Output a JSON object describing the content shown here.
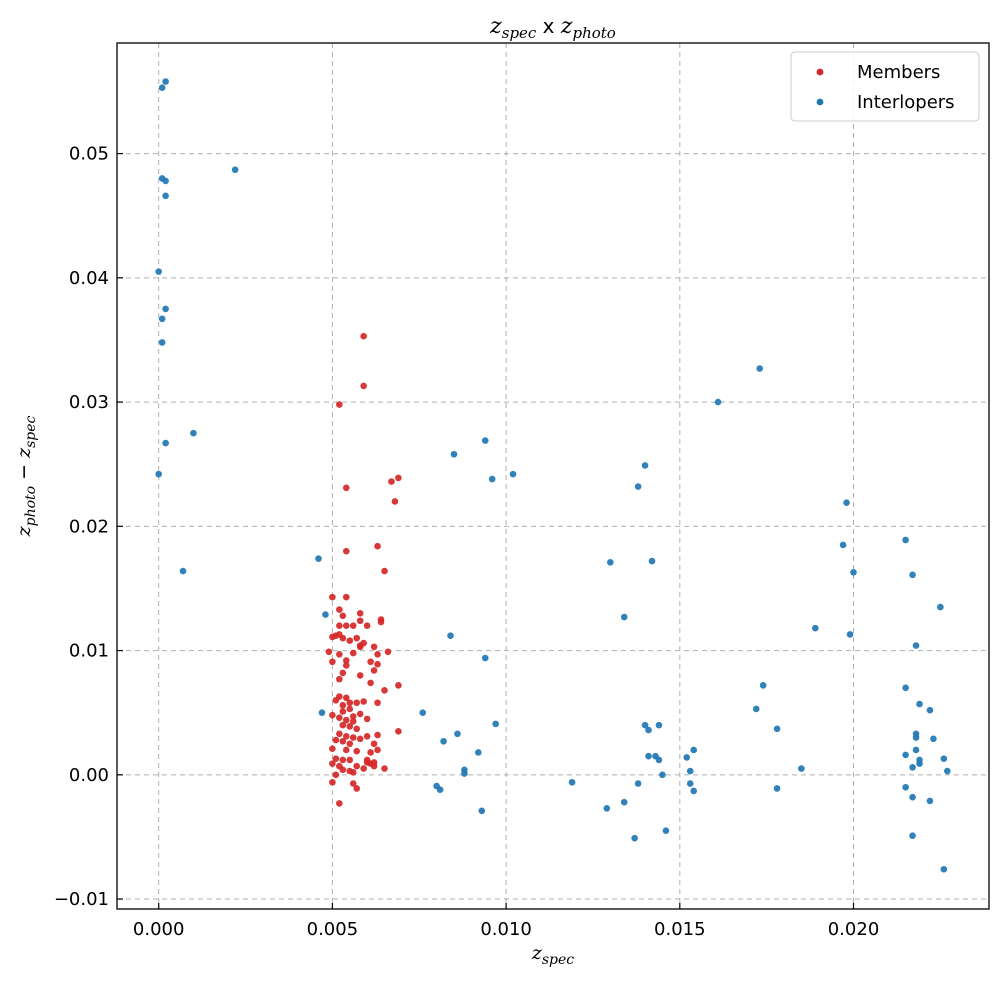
{
  "chart_data": {
    "type": "scatter",
    "title_main": "z",
    "title_sub1": "spec",
    "title_mid": " x ",
    "title_main2": "z",
    "title_sub2": "photo",
    "xlabel_main": "z",
    "xlabel_sub": "spec",
    "ylabel_main1": "z",
    "ylabel_sub1": "photo",
    "ylabel_mid": " − ",
    "ylabel_main2": "z",
    "ylabel_sub2": "spec",
    "xlim": [
      -0.0012,
      0.0239
    ],
    "ylim": [
      -0.0108,
      0.0589
    ],
    "x_ticks": [
      0.0,
      0.005,
      0.01,
      0.015,
      0.02
    ],
    "x_tick_labels": [
      "0.000",
      "0.005",
      "0.010",
      "0.015",
      "0.020"
    ],
    "y_ticks": [
      -0.01,
      0.0,
      0.01,
      0.02,
      0.03,
      0.04,
      0.05
    ],
    "y_tick_labels": [
      "−0.01",
      "0.00",
      "0.01",
      "0.02",
      "0.03",
      "0.04",
      "0.05"
    ],
    "grid": true,
    "legend_position": "top-right",
    "series": [
      {
        "name": "Members",
        "color": "#d62728",
        "points": [
          [
            0.0059,
            0.0353
          ],
          [
            0.0059,
            0.0313
          ],
          [
            0.0052,
            0.0298
          ],
          [
            0.0054,
            0.0231
          ],
          [
            0.0067,
            0.0236
          ],
          [
            0.0069,
            0.0239
          ],
          [
            0.0068,
            0.022
          ],
          [
            0.0063,
            0.0184
          ],
          [
            0.0054,
            0.018
          ],
          [
            0.0065,
            0.0164
          ],
          [
            0.005,
            0.0143
          ],
          [
            0.0054,
            0.0143
          ],
          [
            0.0052,
            0.0133
          ],
          [
            0.0053,
            0.0128
          ],
          [
            0.0058,
            0.013
          ],
          [
            0.0056,
            0.012
          ],
          [
            0.0058,
            0.0124
          ],
          [
            0.0064,
            0.0125
          ],
          [
            0.0064,
            0.0123
          ],
          [
            0.0052,
            0.012
          ],
          [
            0.0054,
            0.012
          ],
          [
            0.006,
            0.012
          ],
          [
            0.005,
            0.0111
          ],
          [
            0.0051,
            0.0112
          ],
          [
            0.0052,
            0.0113
          ],
          [
            0.0053,
            0.011
          ],
          [
            0.0055,
            0.0108
          ],
          [
            0.0057,
            0.011
          ],
          [
            0.0059,
            0.0106
          ],
          [
            0.0062,
            0.0103
          ],
          [
            0.0058,
            0.0103
          ],
          [
            0.0049,
            0.0099
          ],
          [
            0.0052,
            0.0097
          ],
          [
            0.0056,
            0.0098
          ],
          [
            0.0063,
            0.0097
          ],
          [
            0.0066,
            0.0099
          ],
          [
            0.005,
            0.0091
          ],
          [
            0.0054,
            0.0088
          ],
          [
            0.0061,
            0.0091
          ],
          [
            0.0063,
            0.0089
          ],
          [
            0.0053,
            0.0082
          ],
          [
            0.0058,
            0.008
          ],
          [
            0.0062,
            0.0084
          ],
          [
            0.0052,
            0.0077
          ],
          [
            0.0061,
            0.0074
          ],
          [
            0.0065,
            0.0068
          ],
          [
            0.0069,
            0.0072
          ],
          [
            0.0052,
            0.0063
          ],
          [
            0.0054,
            0.0062
          ],
          [
            0.0051,
            0.006
          ],
          [
            0.0055,
            0.0058
          ],
          [
            0.0057,
            0.0058
          ],
          [
            0.0059,
            0.0059
          ],
          [
            0.0063,
            0.0058
          ],
          [
            0.0053,
            0.0051
          ],
          [
            0.0055,
            0.0053
          ],
          [
            0.0058,
            0.0049
          ],
          [
            0.005,
            0.0048
          ],
          [
            0.0052,
            0.0046
          ],
          [
            0.0054,
            0.0044
          ],
          [
            0.0056,
            0.0043
          ],
          [
            0.006,
            0.0045
          ],
          [
            0.0053,
            0.004
          ],
          [
            0.0055,
            0.0039
          ],
          [
            0.0057,
            0.0037
          ],
          [
            0.0069,
            0.0035
          ],
          [
            0.0052,
            0.0033
          ],
          [
            0.0054,
            0.0031
          ],
          [
            0.0056,
            0.003
          ],
          [
            0.006,
            0.0031
          ],
          [
            0.0063,
            0.0032
          ],
          [
            0.0051,
            0.0028
          ],
          [
            0.0053,
            0.0027
          ],
          [
            0.0055,
            0.0025
          ],
          [
            0.0058,
            0.0029
          ],
          [
            0.0062,
            0.0025
          ],
          [
            0.005,
            0.0021
          ],
          [
            0.0054,
            0.002
          ],
          [
            0.0057,
            0.0019
          ],
          [
            0.0061,
            0.0018
          ],
          [
            0.0063,
            0.002
          ],
          [
            0.0051,
            0.0013
          ],
          [
            0.0053,
            0.0012
          ],
          [
            0.0055,
            0.0012
          ],
          [
            0.006,
            0.0012
          ],
          [
            0.0062,
            0.001
          ],
          [
            0.005,
            0.0009
          ],
          [
            0.0052,
            0.0007
          ],
          [
            0.0057,
            0.0007
          ],
          [
            0.0061,
            0.0009
          ],
          [
            0.0053,
            0.0004
          ],
          [
            0.0055,
            0.0003
          ],
          [
            0.0059,
            0.0005
          ],
          [
            0.0051,
            0.0
          ],
          [
            0.0056,
            -0.0007
          ],
          [
            0.0057,
            -0.0011
          ],
          [
            0.005,
            -0.0006
          ],
          [
            0.0052,
            -0.0023
          ],
          [
            0.006,
            0.001
          ],
          [
            0.0053,
            0.0056
          ],
          [
            0.0056,
            0.0047
          ],
          [
            0.0062,
            0.0007
          ],
          [
            0.0054,
            0.0092
          ],
          [
            0.0058,
            0.0104
          ],
          [
            0.0065,
            0.0005
          ],
          [
            0.0056,
            0.0002
          ]
        ]
      },
      {
        "name": "Interlopers",
        "color": "#1f77b4",
        "points": [
          [
            0.0002,
            0.0558
          ],
          [
            0.0001,
            0.0553
          ],
          [
            0.0001,
            0.048
          ],
          [
            0.0002,
            0.0478
          ],
          [
            0.0002,
            0.0466
          ],
          [
            0.0022,
            0.0487
          ],
          [
            0.0,
            0.0405
          ],
          [
            0.0002,
            0.0375
          ],
          [
            0.0001,
            0.0367
          ],
          [
            0.0001,
            0.0348
          ],
          [
            0.001,
            0.0275
          ],
          [
            0.0002,
            0.0267
          ],
          [
            0.0,
            0.0242
          ],
          [
            0.0007,
            0.0164
          ],
          [
            0.0046,
            0.0174
          ],
          [
            0.0048,
            0.0129
          ],
          [
            0.0047,
            0.005
          ],
          [
            0.0085,
            0.0258
          ],
          [
            0.0094,
            0.0269
          ],
          [
            0.0096,
            0.0238
          ],
          [
            0.0102,
            0.0242
          ],
          [
            0.0084,
            0.0112
          ],
          [
            0.0094,
            0.0094
          ],
          [
            0.0076,
            0.005
          ],
          [
            0.0097,
            0.0041
          ],
          [
            0.0082,
            0.0027
          ],
          [
            0.0086,
            0.0033
          ],
          [
            0.0092,
            0.0018
          ],
          [
            0.0088,
            0.0004
          ],
          [
            0.0088,
            0.0001
          ],
          [
            0.008,
            -0.0009
          ],
          [
            0.0081,
            -0.0012
          ],
          [
            0.0093,
            -0.0029
          ],
          [
            0.0173,
            0.0327
          ],
          [
            0.0161,
            0.03
          ],
          [
            0.014,
            0.0249
          ],
          [
            0.0138,
            0.0232
          ],
          [
            0.0142,
            0.0172
          ],
          [
            0.013,
            0.0171
          ],
          [
            0.0134,
            0.0127
          ],
          [
            0.014,
            0.004
          ],
          [
            0.0141,
            0.0036
          ],
          [
            0.0144,
            0.004
          ],
          [
            0.0141,
            0.0015
          ],
          [
            0.0143,
            0.0015
          ],
          [
            0.0144,
            0.0012
          ],
          [
            0.0145,
            0.0
          ],
          [
            0.0138,
            -0.0007
          ],
          [
            0.0134,
            -0.0022
          ],
          [
            0.0129,
            -0.0027
          ],
          [
            0.0137,
            -0.0051
          ],
          [
            0.0146,
            -0.0045
          ],
          [
            0.0154,
            0.002
          ],
          [
            0.0152,
            0.0014
          ],
          [
            0.0153,
            0.0003
          ],
          [
            0.0153,
            -0.0007
          ],
          [
            0.0154,
            -0.0013
          ],
          [
            0.0119,
            -0.0006
          ],
          [
            0.0174,
            0.0072
          ],
          [
            0.0172,
            0.0053
          ],
          [
            0.0178,
            0.0037
          ],
          [
            0.0178,
            -0.0011
          ],
          [
            0.0185,
            0.0005
          ],
          [
            0.0189,
            0.0118
          ],
          [
            0.0198,
            0.0219
          ],
          [
            0.0197,
            0.0185
          ],
          [
            0.02,
            0.0163
          ],
          [
            0.0199,
            0.0113
          ],
          [
            0.0215,
            0.0189
          ],
          [
            0.0217,
            0.0161
          ],
          [
            0.0225,
            0.0135
          ],
          [
            0.0218,
            0.0104
          ],
          [
            0.0215,
            0.007
          ],
          [
            0.0219,
            0.0057
          ],
          [
            0.0222,
            0.0052
          ],
          [
            0.0218,
            0.0033
          ],
          [
            0.0218,
            0.003
          ],
          [
            0.0223,
            0.0029
          ],
          [
            0.0215,
            0.0016
          ],
          [
            0.0218,
            0.002
          ],
          [
            0.0219,
            0.0012
          ],
          [
            0.0219,
            0.0009
          ],
          [
            0.0226,
            0.0013
          ],
          [
            0.0217,
            0.0006
          ],
          [
            0.0227,
            0.0003
          ],
          [
            0.0215,
            -0.001
          ],
          [
            0.0217,
            -0.0018
          ],
          [
            0.0222,
            -0.0021
          ],
          [
            0.0217,
            -0.0049
          ],
          [
            0.0226,
            -0.0076
          ]
        ]
      }
    ]
  }
}
